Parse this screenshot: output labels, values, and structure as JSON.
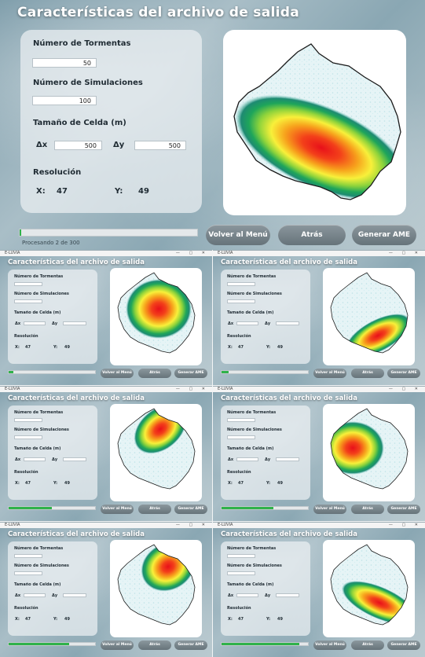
{
  "main": {
    "title": "Características del archivo de salida",
    "labels": {
      "storms": "Número de Tormentas",
      "simulations": "Número de Simulaciones",
      "cell_size": "Tamaño de Celda (m)",
      "dx": "Δx",
      "dy": "Δy",
      "resolution": "Resolución",
      "x": "X:",
      "y": "Y:"
    },
    "values": {
      "storms": "50",
      "simulations": "100",
      "dx": "500",
      "dy": "500",
      "res_x": "47",
      "res_y": "49"
    },
    "progress_text": "Procesando 2 de 300",
    "progress_fraction": 0.007,
    "buttons": {
      "menu": "Volver al Menú",
      "back": "Atrás",
      "generate": "Generar AME"
    }
  },
  "thumb": {
    "window_name": "E-LUVIA",
    "title": "Características del archivo de salida",
    "labels": {
      "storms": "Número de Tormentas",
      "simulations": "Número de Simulaciones",
      "cell_size": "Tamaño de Celda (m)",
      "dx": "Δx",
      "dy": "Δy",
      "resolution": "Resolución",
      "x": "X:",
      "y": "Y:",
      "res_x": "47",
      "res_y": "49"
    },
    "buttons": {
      "menu": "Volver al Menú",
      "back": "Atrás",
      "generate": "Generar AME"
    },
    "progress_fractions": [
      0.05,
      0.08,
      0.5,
      0.6,
      0.7,
      0.9
    ]
  }
}
